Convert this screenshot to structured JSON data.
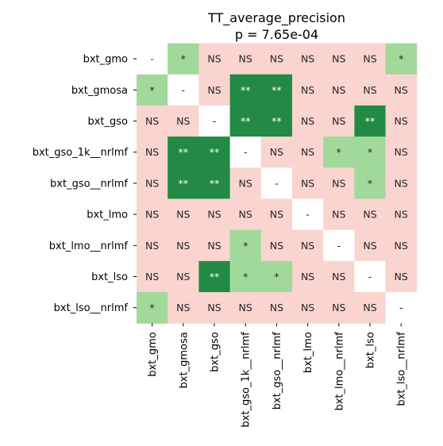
{
  "chart_data": {
    "type": "heatmap",
    "title": "TT_average_precision",
    "subtitle": "p = 7.65e-04",
    "rows": [
      "bxt_gmo",
      "bxt_gmosa",
      "bxt_gso",
      "bxt_gso_1k__nrlmf",
      "bxt_gso__nrlmf",
      "bxt_lmo",
      "bxt_lmo__nrlmf",
      "bxt_lso",
      "bxt_lso__nrlmf"
    ],
    "columns": [
      "bxt_gmo",
      "bxt_gmosa",
      "bxt_gso",
      "bxt_gso_1k__nrlmf",
      "bxt_gso__nrlmf",
      "bxt_lmo",
      "bxt_lmo__nrlmf",
      "bxt_lso",
      "bxt_lso__nrlmf"
    ],
    "cells": [
      [
        "-",
        "*",
        "NS",
        "NS",
        "NS",
        "NS",
        "NS",
        "NS",
        "*"
      ],
      [
        "*",
        "-",
        "NS",
        "**",
        "**",
        "NS",
        "NS",
        "NS",
        "NS"
      ],
      [
        "NS",
        "NS",
        "-",
        "**",
        "**",
        "NS",
        "NS",
        "**",
        "NS"
      ],
      [
        "NS",
        "**",
        "**",
        "-",
        "NS",
        "NS",
        "*",
        "*",
        "NS"
      ],
      [
        "NS",
        "**",
        "**",
        "NS",
        "-",
        "NS",
        "NS",
        "*",
        "NS"
      ],
      [
        "NS",
        "NS",
        "NS",
        "NS",
        "NS",
        "-",
        "NS",
        "NS",
        "NS"
      ],
      [
        "NS",
        "NS",
        "NS",
        "*",
        "NS",
        "NS",
        "-",
        "NS",
        "NS"
      ],
      [
        "NS",
        "NS",
        "**",
        "*",
        "*",
        "NS",
        "NS",
        "-",
        "NS"
      ],
      [
        "*",
        "NS",
        "NS",
        "NS",
        "NS",
        "NS",
        "NS",
        "NS",
        "-"
      ]
    ],
    "colors": {
      "NS": "#fad4cf",
      "*": "#a1d99b",
      "**": "#228a44",
      "-": "#ffffff"
    },
    "text_colors": {
      "NS": "#262626",
      "*": "#262626",
      "**": "#ffffff",
      "-": "#262626"
    }
  }
}
